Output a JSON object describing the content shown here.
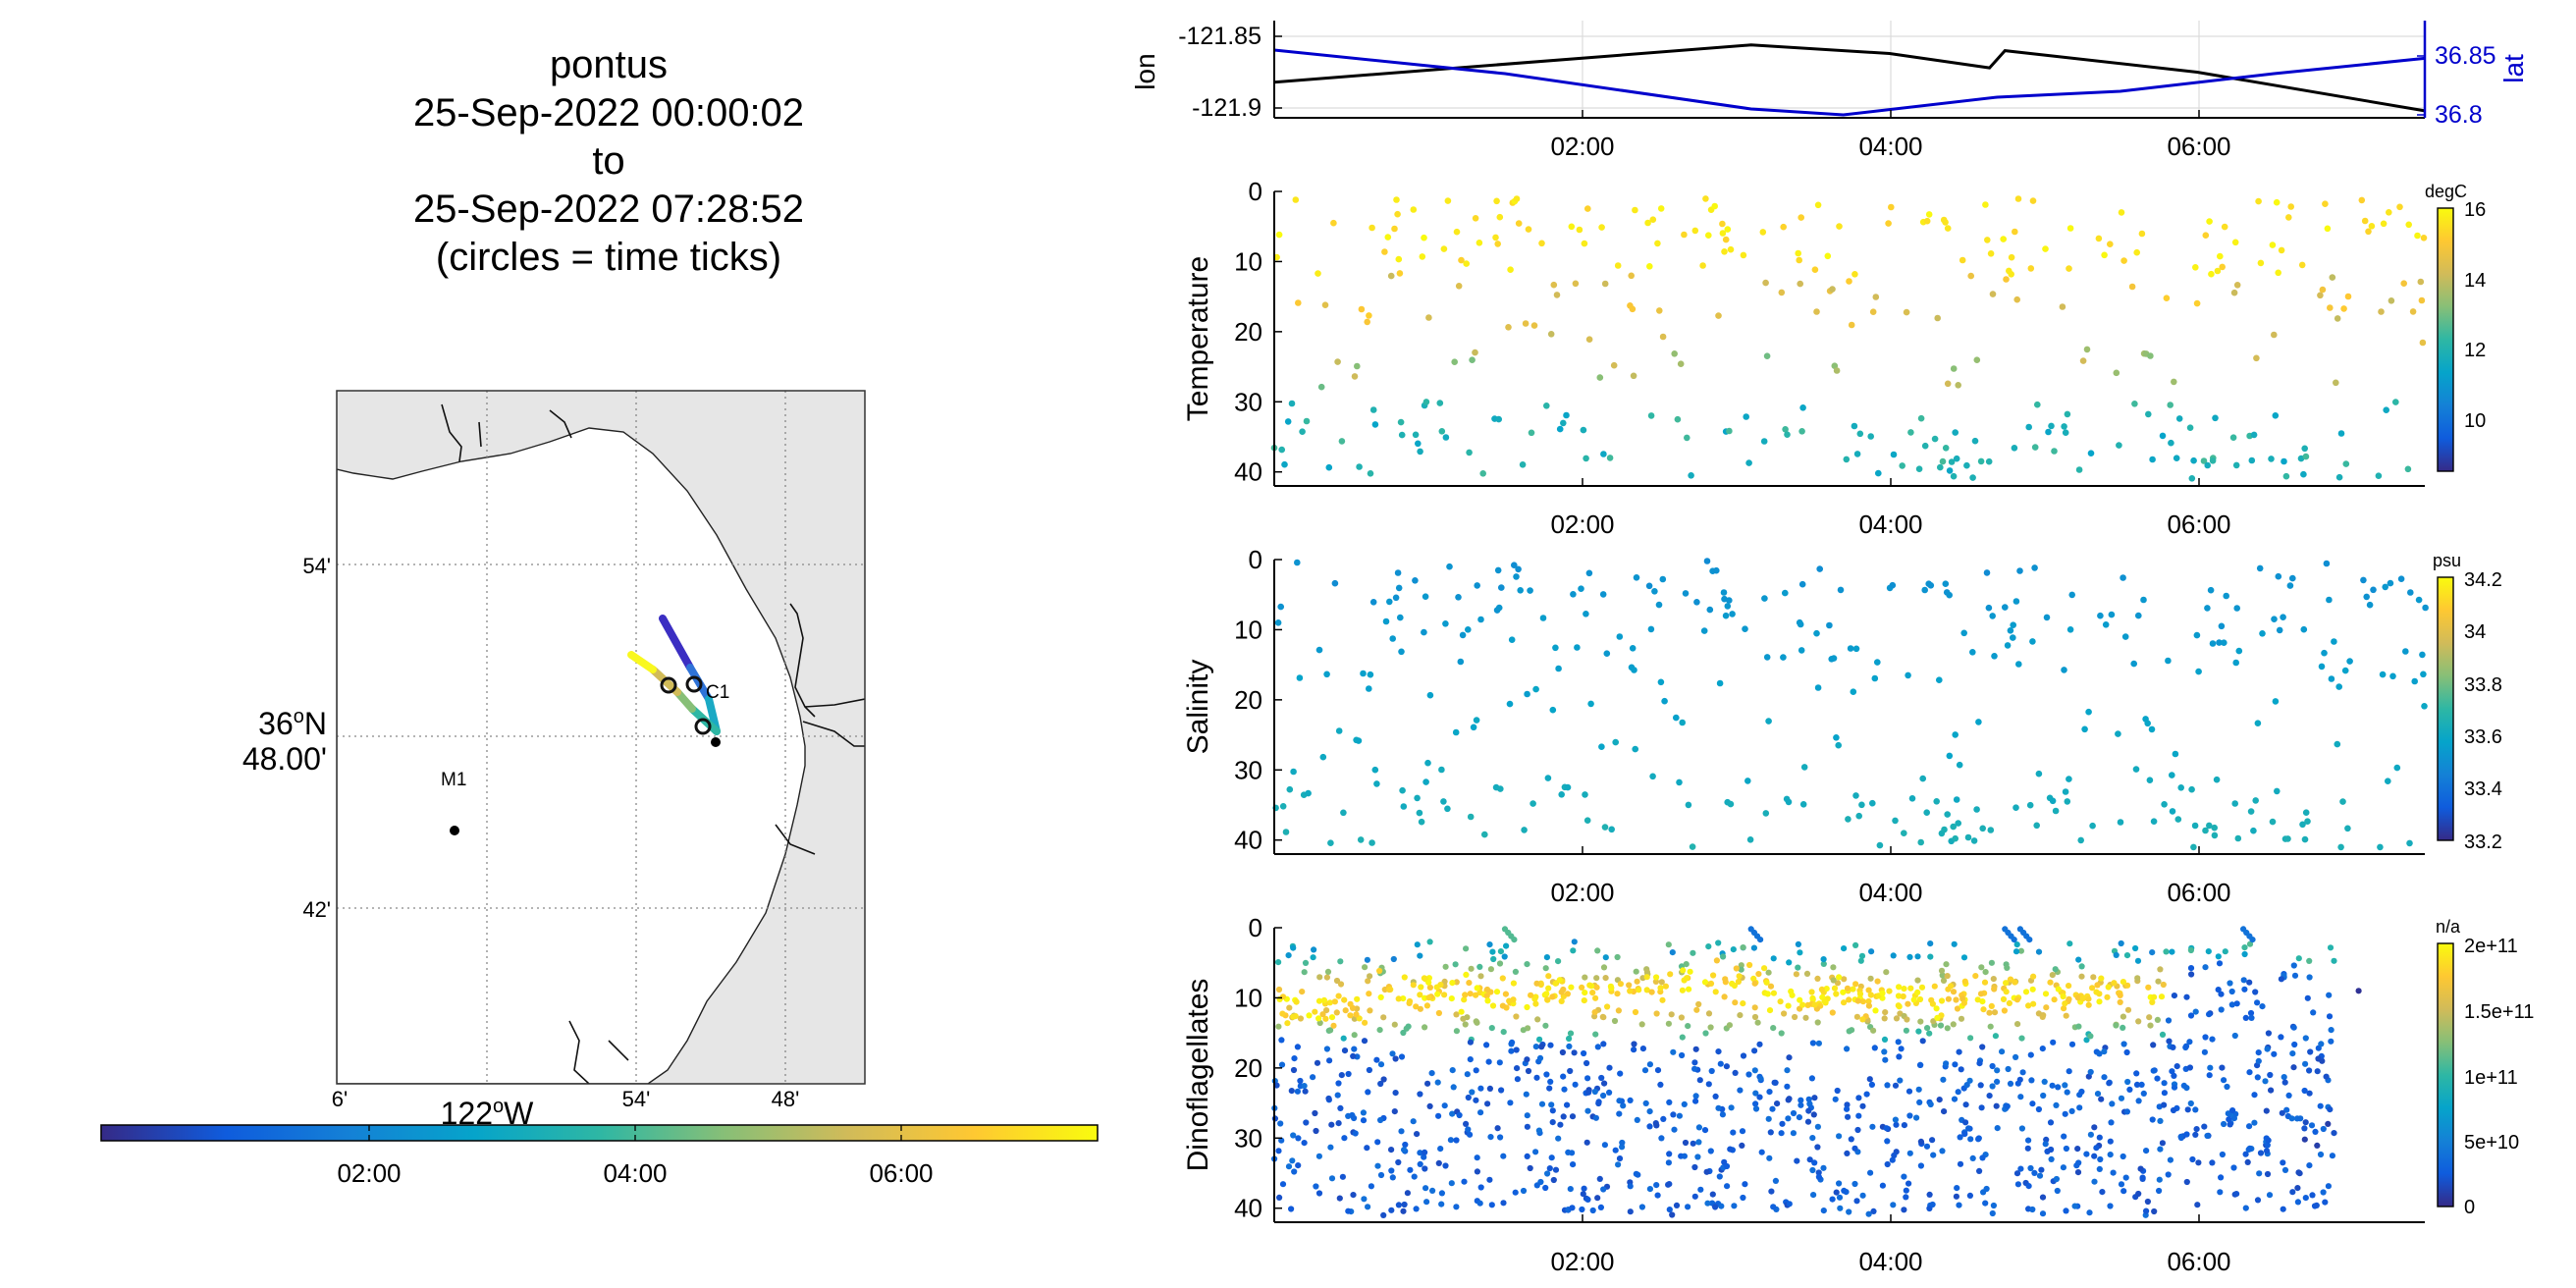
{
  "title": {
    "lines": [
      "pontus",
      "25-Sep-2022 00:00:02",
      "to",
      "25-Sep-2022 07:28:52",
      "(circles = time ticks)"
    ]
  },
  "map": {
    "lat_ticks": [
      "54'",
      "42'"
    ],
    "lat_center_line1": "36",
    "lat_center_sup": "o",
    "lat_center_suffix": "N",
    "lat_center_line2": "48.00'",
    "lon_ticks": [
      "6'",
      "54'",
      "48'"
    ],
    "lon_center": "122",
    "lon_center_sup": "o",
    "lon_center_suffix": "W",
    "stations": [
      {
        "label": "M1",
        "lon": -122.0303,
        "lat": 36.747
      },
      {
        "label": "C1",
        "lon": -121.8811,
        "lat": 36.7964
      }
    ],
    "track_colors": [
      "#3b2ec2",
      "#2f73d8",
      "#1aa9c4",
      "#3fbe85",
      "#a9c43a",
      "#f3c52d",
      "#f9f81f"
    ],
    "colorbar_ticks": [
      "02:00",
      "04:00",
      "06:00"
    ]
  },
  "colors": {
    "lon_line": "#000000",
    "lat_line": "#0000cc",
    "grid": "#dcdcdc",
    "land": "#e6e6e6",
    "colormap": [
      "#352a87",
      "#0f5cdd",
      "#1481d6",
      "#06a4ca",
      "#2eb7a4",
      "#87bf77",
      "#d1bb59",
      "#fec832",
      "#f9fb0e"
    ]
  },
  "chart_data": [
    {
      "type": "line",
      "x_ticks": [
        "02:00",
        "04:00",
        "06:00"
      ],
      "ylabel": "lon",
      "ylabel_right": "lat",
      "lon_ticks": [
        "-121.85",
        "-121.9"
      ],
      "lat_ticks": [
        "36.85",
        "36.8"
      ],
      "xlim_hours": [
        0,
        7.48
      ],
      "lon_ylim": [
        -121.905,
        -121.84
      ],
      "lat_ylim": [
        36.795,
        36.865
      ],
      "series": [
        {
          "name": "lon",
          "x": [
            0,
            3.1,
            4.0,
            4.65,
            4.75,
            6.0,
            7.48
          ],
          "values": [
            -121.882,
            -121.856,
            -121.862,
            -121.872,
            -121.86,
            -121.875,
            -121.902
          ]
        },
        {
          "name": "lat",
          "x": [
            0,
            1.5,
            3.1,
            3.7,
            4.7,
            5.5,
            6.5,
            7.48
          ],
          "values": [
            36.855,
            36.835,
            36.805,
            36.8,
            36.815,
            36.82,
            36.835,
            36.848
          ]
        }
      ]
    },
    {
      "type": "scatter",
      "ylabel": "Temperature",
      "y_ticks": [
        "0",
        "10",
        "20",
        "30",
        "40"
      ],
      "x_ticks": [
        "02:00",
        "04:00",
        "06:00"
      ],
      "ylim": [
        0,
        42
      ],
      "cbar_label": "degC",
      "cbar_ticks": [
        "16",
        "14",
        "12",
        "10"
      ],
      "cbar_range": [
        8.5,
        16
      ]
    },
    {
      "type": "scatter",
      "ylabel": "Salinity",
      "y_ticks": [
        "0",
        "10",
        "20",
        "30",
        "40"
      ],
      "x_ticks": [
        "02:00",
        "04:00",
        "06:00"
      ],
      "ylim": [
        0,
        42
      ],
      "cbar_label": "psu",
      "cbar_ticks": [
        "34.2",
        "34",
        "33.8",
        "33.6",
        "33.4",
        "33.2"
      ],
      "cbar_range": [
        33.2,
        34.2
      ]
    },
    {
      "type": "scatter",
      "ylabel": "Dinoflagellates",
      "y_ticks": [
        "0",
        "10",
        "20",
        "30",
        "40"
      ],
      "x_ticks": [
        "02:00",
        "04:00",
        "06:00"
      ],
      "ylim": [
        0,
        42
      ],
      "cbar_label": "n/a",
      "cbar_ticks": [
        "2e+11",
        "1.5e+11",
        "1e+11",
        "5e+10",
        "0"
      ],
      "cbar_range": [
        0,
        200000000000.0
      ]
    }
  ]
}
